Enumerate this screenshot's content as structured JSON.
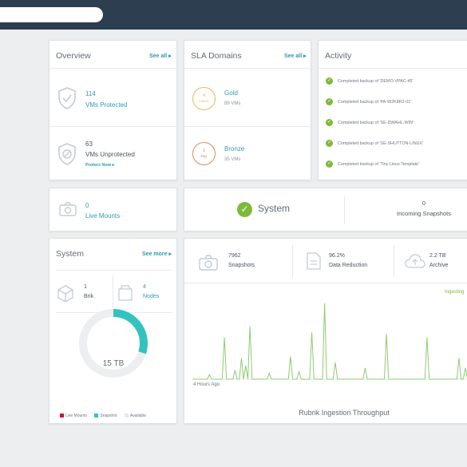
{
  "overview": {
    "title": "Overview",
    "see_all": "See all ▸",
    "protected_count": "114",
    "protected_label": "VMs Protected",
    "unprotected_count": "63",
    "unprotected_label": "VMs Unprotected",
    "protect_now": "Protect Now ▸"
  },
  "sla": {
    "title": "SLA Domains",
    "see_all": "See all ▸",
    "domains": [
      {
        "badge_num": "4",
        "badge_unit": "Hours",
        "name": "Gold",
        "count": "89 VMs",
        "color": "#f0b45a"
      },
      {
        "badge_num": "1",
        "badge_unit": "Day",
        "name": "Bronze",
        "count": "35 VMs",
        "color": "#d98a5c"
      }
    ]
  },
  "activity": {
    "title": "Activity",
    "items": [
      "Completed backup of 'DEMO-VPAC-45'",
      "Completed backup of 'PA-W2K8R2-01'",
      "Completed backup of 'SE-DWAHL-WIN'",
      "Completed backup of 'SE-SHUTTON-LINUX'",
      "Completed backup of 'Tiny Linux Template'"
    ]
  },
  "live_mounts": {
    "count": "0",
    "label": "Live Mounts"
  },
  "status": {
    "system_label": "System",
    "incoming_count": "0",
    "incoming_label": "Incoming Snapshots"
  },
  "system": {
    "title": "System",
    "see_more": "See more ▸",
    "brik_count": "1",
    "brik_label": "Brik",
    "nodes_count": "4",
    "nodes_label": "Nodes",
    "capacity": "15 TB",
    "donut_fraction": 0.3,
    "legend": [
      {
        "label": "Live Mounts",
        "color": "#d0112b"
      },
      {
        "label": "Snapshot",
        "color": "#33c3bf"
      },
      {
        "label": "Available",
        "color": "#e8ebee"
      }
    ]
  },
  "stats": [
    {
      "value": "7962",
      "label": "Snapshots",
      "icon": "camera-icon"
    },
    {
      "value": "96.2%",
      "label": "Data Reduction",
      "icon": "document-icon"
    },
    {
      "value": "2.2 TB",
      "label": "Archive",
      "icon": "cloud-icon"
    }
  ],
  "throughput": {
    "title": "Rubrik Ingestion Throughput",
    "legend_label": "Ingesting",
    "start_label": "4 Hours Ago",
    "line_color": "#8ecb73",
    "spikes": [
      0,
      0,
      0,
      0,
      0,
      0,
      0,
      0,
      6,
      0,
      0,
      0,
      0,
      0,
      0,
      55,
      0,
      0,
      0,
      0,
      12,
      0,
      0,
      28,
      0,
      18,
      0,
      70,
      0,
      0,
      0,
      0,
      0,
      0,
      0,
      0,
      8,
      0,
      0,
      0,
      0,
      0,
      0,
      0,
      0,
      0,
      30,
      0,
      0,
      0,
      10,
      0,
      0,
      0,
      0,
      0,
      62,
      0,
      0,
      0,
      0,
      0,
      100,
      0,
      0,
      0,
      0,
      22,
      0,
      0,
      0,
      0,
      0,
      0,
      0,
      0,
      0,
      0,
      0,
      0,
      0,
      15,
      0,
      0,
      0,
      0,
      0,
      0,
      0,
      0,
      0,
      60,
      0,
      0,
      0,
      0,
      0,
      0,
      0,
      0,
      0,
      0,
      0,
      0,
      0,
      0,
      0,
      0,
      0,
      0,
      55,
      0,
      0,
      0,
      0,
      0,
      0,
      0,
      0,
      0,
      0,
      0,
      0,
      0,
      0,
      28,
      0,
      0,
      15,
      0,
      0,
      0
    ]
  }
}
